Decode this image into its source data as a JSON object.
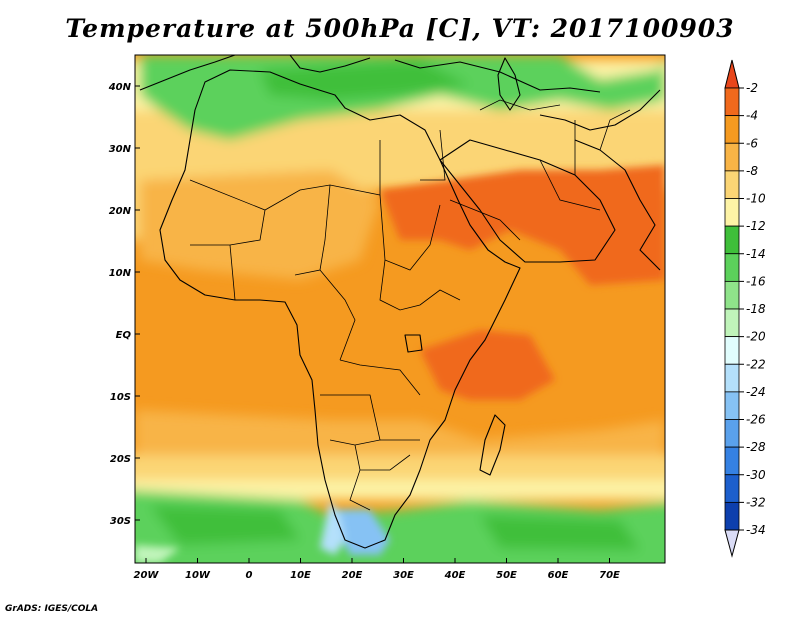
{
  "title": "Temperature at 500hPa [C], VT: 2017100903",
  "footer": "GrADS: IGES/COLA",
  "map": {
    "lon_ticks": [
      "20W",
      "10W",
      "0",
      "10E",
      "20E",
      "30E",
      "40E",
      "50E",
      "60E",
      "70E"
    ],
    "lat_ticks": [
      "40N",
      "30N",
      "20N",
      "10N",
      "EQ",
      "10S",
      "20S",
      "30S"
    ]
  },
  "colorbar": {
    "labels": [
      "-2",
      "-4",
      "-6",
      "-8",
      "-10",
      "-12",
      "-14",
      "-16",
      "-18",
      "-20",
      "-22",
      "-24",
      "-26",
      "-28",
      "-30",
      "-32",
      "-34"
    ],
    "colors": [
      "#e8461b",
      "#f0691c",
      "#f59a20",
      "#f8b446",
      "#fbd575",
      "#fdf3a6",
      "#3fbf3a",
      "#5cd15b",
      "#8fe38a",
      "#c0f4ba",
      "#e1fdfd",
      "#b4e0fb",
      "#86c2f4",
      "#5aa1ec",
      "#3581e3",
      "#1c5fcd",
      "#0d3fad",
      "#142080"
    ],
    "top_arrow_color": "#e8461b",
    "bottom_arrow_color": "#dadcf6"
  }
}
